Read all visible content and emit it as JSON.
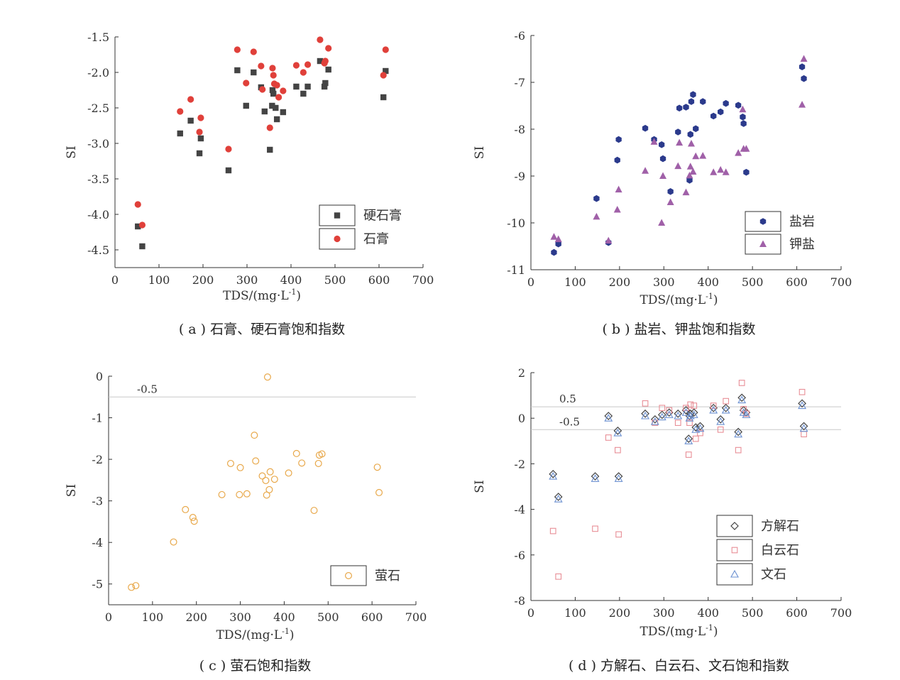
{
  "chart_data": [
    {
      "type": "scatter",
      "caption": "( a ) 石膏、硬石膏饱和指数",
      "xlabel": "TDS/(mg·L-1)",
      "ylabel": "SI",
      "xlim": [
        0,
        700
      ],
      "ylim": [
        -4.75,
        -1.5
      ],
      "xticks": [
        0,
        100,
        200,
        300,
        400,
        500,
        600,
        700
      ],
      "yticks": [
        -1.5,
        -2.0,
        -2.5,
        -3.0,
        -3.5,
        -4.0,
        -4.5
      ],
      "ytick_labels": [
        "-1.5",
        "-2.0",
        "-2.5",
        "-3.0",
        "-3.5",
        "-4.0",
        "-4.5"
      ],
      "legend_position": "lower-right",
      "series": [
        {
          "name": "硬石膏",
          "marker": "square",
          "color": "#444444",
          "x": [
            52,
            62,
            148,
            172,
            192,
            195,
            258,
            278,
            298,
            315,
            332,
            340,
            352,
            357,
            358,
            360,
            365,
            368,
            382,
            412,
            428,
            438,
            466,
            476,
            478,
            485,
            610,
            615
          ],
          "y": [
            -4.17,
            -4.45,
            -2.86,
            -2.68,
            -3.14,
            -2.93,
            -3.38,
            -1.97,
            -2.47,
            -2.0,
            -2.21,
            -2.55,
            -3.09,
            -2.47,
            -2.25,
            -2.3,
            -2.5,
            -2.66,
            -2.56,
            -2.2,
            -2.3,
            -2.2,
            -1.84,
            -2.2,
            -2.15,
            -1.96,
            -2.35,
            -1.98
          ]
        },
        {
          "name": "石膏",
          "marker": "circle",
          "color": "#e0403a",
          "x": [
            52,
            62,
            148,
            172,
            192,
            195,
            258,
            278,
            298,
            315,
            332,
            335,
            352,
            358,
            360,
            362,
            368,
            372,
            382,
            412,
            428,
            438,
            466,
            476,
            478,
            485,
            610,
            615
          ],
          "y": [
            -3.86,
            -4.15,
            -2.55,
            -2.38,
            -2.84,
            -2.64,
            -3.08,
            -1.68,
            -2.15,
            -1.71,
            -1.91,
            -2.24,
            -2.78,
            -1.94,
            -2.04,
            -2.16,
            -2.18,
            -2.35,
            -2.26,
            -1.9,
            -2.0,
            -1.89,
            -1.54,
            -1.87,
            -1.84,
            -1.66,
            -2.04,
            -1.68
          ]
        }
      ]
    },
    {
      "type": "scatter",
      "caption": "( b ) 盐岩、钾盐饱和指数",
      "xlabel": "TDS/(mg·L-1)",
      "ylabel": "SI",
      "xlim": [
        0,
        700
      ],
      "ylim": [
        -11,
        -6
      ],
      "xticks": [
        0,
        100,
        200,
        300,
        400,
        500,
        600,
        700
      ],
      "yticks": [
        -6,
        -7,
        -8,
        -9,
        -10,
        -11
      ],
      "ytick_labels": [
        "-6",
        "-7",
        "-8",
        "-9",
        "-10",
        "-11"
      ],
      "legend_position": "lower-right",
      "series": [
        {
          "name": "盐岩",
          "marker": "hexagon",
          "color": "#2b3a8c",
          "x": [
            52,
            62,
            148,
            175,
            195,
            198,
            258,
            278,
            295,
            298,
            315,
            332,
            335,
            350,
            358,
            360,
            362,
            366,
            372,
            388,
            412,
            428,
            440,
            468,
            478,
            480,
            486,
            612,
            616
          ],
          "y": [
            -10.63,
            -10.45,
            -9.48,
            -10.42,
            -8.66,
            -8.22,
            -7.98,
            -8.22,
            -8.33,
            -8.63,
            -9.33,
            -8.06,
            -7.55,
            -7.53,
            -9.09,
            -8.11,
            -7.41,
            -7.26,
            -7.99,
            -7.41,
            -7.72,
            -7.63,
            -7.45,
            -7.49,
            -7.74,
            -7.88,
            -8.92,
            -6.67,
            -6.92
          ]
        },
        {
          "name": "钾盐",
          "marker": "triangle",
          "color": "#a060a8",
          "x": [
            52,
            62,
            148,
            175,
            195,
            198,
            258,
            278,
            295,
            298,
            315,
            332,
            335,
            350,
            358,
            360,
            362,
            366,
            372,
            388,
            412,
            428,
            440,
            468,
            478,
            480,
            486,
            612,
            616
          ],
          "y": [
            -10.3,
            -10.35,
            -9.87,
            -10.38,
            -9.72,
            -9.29,
            -8.89,
            -8.27,
            -10.0,
            -9.0,
            -9.56,
            -8.79,
            -8.29,
            -9.35,
            -8.99,
            -8.8,
            -8.31,
            -8.91,
            -8.58,
            -8.57,
            -8.92,
            -8.87,
            -8.92,
            -8.51,
            -7.58,
            -8.42,
            -8.42,
            -7.48,
            -6.5
          ]
        }
      ]
    },
    {
      "type": "scatter",
      "caption": "( c ) 萤石饱和指数",
      "xlabel": "TDS/(mg·L-1)",
      "ylabel": "SI",
      "xlim": [
        0,
        700
      ],
      "ylim": [
        -5.5,
        0
      ],
      "xticks": [
        0,
        100,
        200,
        300,
        400,
        500,
        600,
        700
      ],
      "yticks": [
        0,
        -1,
        -2,
        -3,
        -4,
        -5
      ],
      "ytick_labels": [
        "0",
        "-1",
        "-2",
        "-3",
        "-4",
        "-5"
      ],
      "reference_lines": [
        {
          "y": -0.5,
          "label": "-0.5"
        }
      ],
      "legend_position": "lower-right",
      "series": [
        {
          "name": "萤石",
          "marker": "circle-open",
          "color": "#e8a84a",
          "x": [
            52,
            62,
            148,
            175,
            192,
            195,
            258,
            278,
            298,
            300,
            315,
            332,
            335,
            350,
            358,
            360,
            362,
            366,
            368,
            378,
            410,
            428,
            440,
            468,
            478,
            480,
            486,
            612,
            616
          ],
          "y": [
            -5.08,
            -5.04,
            -3.99,
            -3.21,
            -3.4,
            -3.49,
            -2.85,
            -2.1,
            -2.85,
            -2.2,
            -2.83,
            -1.42,
            -2.04,
            -2.4,
            -2.51,
            -2.86,
            -0.02,
            -2.73,
            -2.3,
            -2.48,
            -2.33,
            -1.86,
            -2.09,
            -3.23,
            -2.1,
            -1.9,
            -1.87,
            -2.19,
            -2.8
          ]
        }
      ]
    },
    {
      "type": "scatter",
      "caption": "( d ) 方解石、白云石、文石饱和指数",
      "xlabel": "TDS/(mg·L-1)",
      "ylabel": "SI",
      "xlim": [
        0,
        700
      ],
      "ylim": [
        -8,
        2
      ],
      "xticks": [
        0,
        100,
        200,
        300,
        400,
        500,
        600,
        700
      ],
      "yticks": [
        2,
        0,
        -2,
        -4,
        -6,
        -8
      ],
      "ytick_labels": [
        "2",
        "0",
        "-2",
        "-4",
        "-6",
        "-8"
      ],
      "reference_lines": [
        {
          "y": 0.5,
          "label": "0.5"
        },
        {
          "y": -0.5,
          "label": "-0.5"
        }
      ],
      "legend_position": "lower-right",
      "series": [
        {
          "name": "方解石",
          "marker": "diamond-open",
          "color": "#444444",
          "x": [
            50,
            62,
            145,
            175,
            196,
            198,
            258,
            280,
            296,
            312,
            332,
            350,
            356,
            358,
            360,
            368,
            372,
            382,
            412,
            428,
            440,
            468,
            476,
            480,
            486,
            612,
            616
          ],
          "y": [
            -2.45,
            -3.45,
            -2.55,
            0.1,
            -0.55,
            -2.55,
            0.2,
            -0.05,
            0.15,
            0.25,
            0.2,
            0.35,
            -0.9,
            0.1,
            0.2,
            0.25,
            -0.4,
            -0.35,
            0.45,
            -0.05,
            0.45,
            -0.6,
            0.9,
            0.35,
            0.25,
            0.65,
            -0.35
          ]
        },
        {
          "name": "白云石",
          "marker": "square-open",
          "color": "#e88e96",
          "x": [
            50,
            62,
            145,
            175,
            196,
            198,
            258,
            280,
            296,
            312,
            332,
            350,
            356,
            358,
            360,
            368,
            372,
            382,
            412,
            428,
            440,
            468,
            476,
            480,
            486,
            612,
            616
          ],
          "y": [
            -4.95,
            -6.95,
            -4.85,
            -0.85,
            -1.4,
            -5.1,
            0.65,
            -0.2,
            0.45,
            0.35,
            -0.2,
            0.45,
            -1.6,
            -0.2,
            0.6,
            0.55,
            -0.9,
            -0.65,
            0.55,
            -0.5,
            0.75,
            -1.4,
            1.55,
            0.4,
            0.2,
            1.15,
            -0.7
          ]
        },
        {
          "name": "文石",
          "marker": "triangle-open",
          "color": "#6a8fd0",
          "x": [
            50,
            62,
            145,
            175,
            196,
            198,
            258,
            280,
            296,
            312,
            332,
            350,
            356,
            358,
            360,
            368,
            372,
            382,
            412,
            428,
            440,
            468,
            476,
            480,
            486,
            612,
            616
          ],
          "y": [
            -2.55,
            -3.55,
            -2.65,
            0.0,
            -0.65,
            -2.65,
            0.1,
            -0.15,
            0.05,
            0.15,
            0.1,
            0.25,
            -1.0,
            0.0,
            0.1,
            0.15,
            -0.5,
            -0.45,
            0.35,
            -0.15,
            0.35,
            -0.7,
            0.8,
            0.25,
            0.15,
            0.55,
            -0.45
          ]
        }
      ]
    }
  ]
}
